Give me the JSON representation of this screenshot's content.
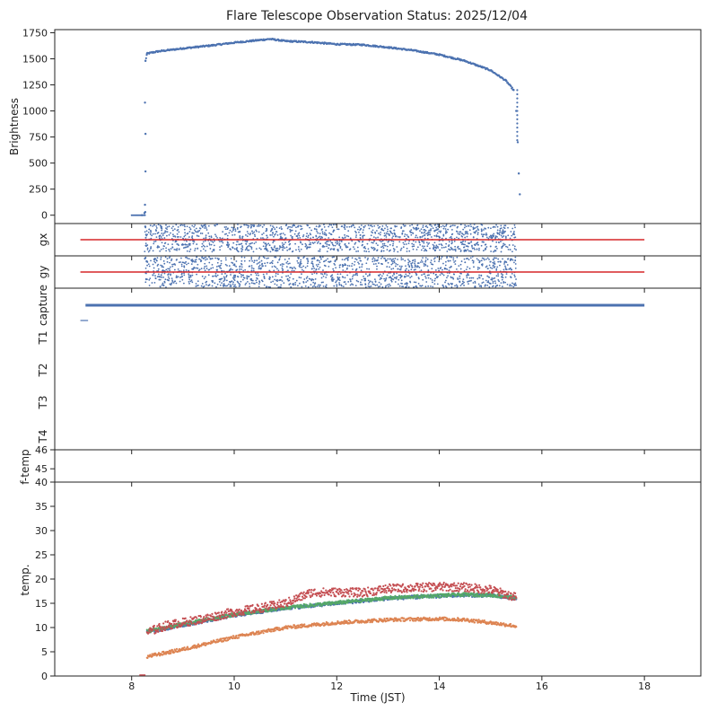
{
  "colors": {
    "blue": "#4c72b0",
    "orange": "#dd8452",
    "green": "#55a868",
    "red": "#c44e52",
    "redline": "#d62728",
    "axis": "#222222"
  },
  "chart_data": {
    "type": "scatter",
    "title": "Flare Telescope Observation Status: 2025/12/04",
    "xlabel": "Time (JST)",
    "xlim": [
      6.5,
      19.1
    ],
    "xticks": [
      8,
      10,
      12,
      14,
      16,
      18
    ],
    "panels": [
      {
        "id": "brightness",
        "ylabel": "Brightness",
        "ylim": [
          -80,
          1780
        ],
        "yticks": [
          0,
          250,
          500,
          750,
          1000,
          1250,
          1500,
          1750
        ],
        "series": [
          {
            "color": "#4c72b0",
            "x": [
              8.2,
              8.25,
              8.27,
              8.3,
              8.5,
              9.0,
              9.5,
              10.0,
              10.5,
              10.7,
              11.0,
              11.5,
              12.0,
              12.5,
              13.0,
              13.5,
              14.0,
              14.5,
              15.0,
              15.3,
              15.45,
              15.5,
              15.53,
              15.55,
              15.57
            ],
            "y": [
              0,
              20,
              1480,
              1550,
              1570,
              1600,
              1625,
              1655,
              1680,
              1690,
              1670,
              1660,
              1640,
              1635,
              1610,
              1580,
              1540,
              1480,
              1390,
              1290,
              1200,
              1000,
              700,
              400,
              200
            ]
          }
        ]
      },
      {
        "id": "gx",
        "ylabel": "gx",
        "ylim": [
          -1,
          1
        ],
        "yticks": [],
        "series": [
          {
            "color": "#4c72b0",
            "x_start": 8.25,
            "x_end": 15.5,
            "scatter_band": [
              -0.75,
              0.95
            ]
          }
        ],
        "reference_line": {
          "color": "#d62728",
          "x": [
            7.0,
            18.0
          ],
          "y": 0
        }
      },
      {
        "id": "gy",
        "ylabel": "gy",
        "ylim": [
          -1,
          1
        ],
        "yticks": [],
        "series": [
          {
            "color": "#4c72b0",
            "x_start": 8.25,
            "x_end": 15.5,
            "scatter_band": [
              -0.95,
              0.95
            ]
          }
        ],
        "reference_line": {
          "color": "#d62728",
          "x": [
            7.0,
            18.0
          ],
          "y": 0
        }
      },
      {
        "id": "status",
        "ylabel": "",
        "categories": [
          "capture",
          "T1",
          "T2",
          "T3",
          "T4"
        ],
        "series": [
          {
            "color": "#4c72b0",
            "category": "capture",
            "x": [
              7.1,
              18.0
            ]
          },
          {
            "color": "#4c72b0",
            "category": "capture-low",
            "x": [
              7.0,
              7.15
            ]
          }
        ]
      },
      {
        "id": "f-temp",
        "ylabel": "f-temp",
        "ylim": [
          44.3,
          46
        ],
        "yticks": [
          45,
          46
        ],
        "series": []
      },
      {
        "id": "temp",
        "ylabel": "temp.",
        "ylim": [
          0,
          40
        ],
        "yticks": [
          0,
          5,
          10,
          15,
          20,
          25,
          30,
          35,
          40
        ],
        "series": [
          {
            "color": "#dd8452",
            "x": [
              8.3,
              9.0,
              10.0,
              11.0,
              12.0,
              13.0,
              14.0,
              14.5,
              15.0,
              15.5
            ],
            "y": [
              4,
              5.5,
              8,
              10,
              11,
              11.6,
              11.8,
              11.6,
              11.0,
              10.3
            ]
          },
          {
            "color": "#4c72b0",
            "x": [
              8.3,
              9.0,
              10.0,
              11.0,
              12.0,
              13.0,
              14.0,
              14.5,
              15.0,
              15.5
            ],
            "y": [
              9,
              10.5,
              12.5,
              14,
              15,
              16,
              16.5,
              16.7,
              16.6,
              16.0
            ]
          },
          {
            "color": "#55a868",
            "x": [
              8.3,
              9.0,
              10.0,
              11.0,
              12.0,
              13.0,
              14.0,
              14.5,
              15.0,
              15.5
            ],
            "y": [
              9.2,
              10.7,
              12.7,
              14.1,
              15.1,
              16.1,
              16.6,
              16.8,
              16.7,
              16.1
            ]
          },
          {
            "color": "#c44e52",
            "x": [
              8.3,
              8.7,
              9.0,
              9.5,
              10.0,
              10.5,
              11.0,
              11.5,
              12.0,
              12.5,
              13.0,
              13.5,
              14.0,
              14.5,
              15.0,
              15.5
            ],
            "y": [
              9,
              10.5,
              11,
              12,
              13.2,
              14,
              15,
              17.2,
              17.3,
              17.2,
              18,
              18.2,
              18.4,
              18.3,
              17.8,
              16.2
            ]
          }
        ]
      }
    ]
  }
}
